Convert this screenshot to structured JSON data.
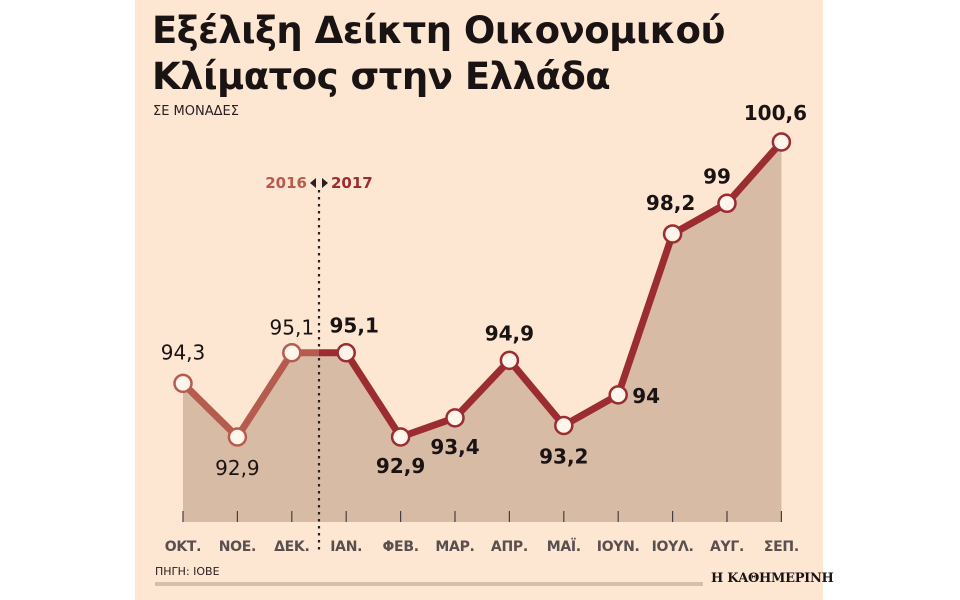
{
  "header": {
    "title": "Εξέλιξη Δείκτη Οικονομικού Κλίματος στην Ελλάδα",
    "subtitle": "ΣΕ ΜΟΝΑΔΕΣ"
  },
  "footer": {
    "source": "ΠΗΓΗ: ΙΟΒΕ",
    "brand": "Η ΚΑΘΗΜΕΡΙΝΗ"
  },
  "divider": {
    "left_year": "2016",
    "right_year": "2017"
  },
  "colors": {
    "background": "#fde6d2",
    "area_fill": "#d7bba5",
    "line_2016": "#b55c4f",
    "line_2017": "#9b2c30",
    "marker_fill": "#fff5ea"
  },
  "chart_data": {
    "type": "area",
    "title": "Εξέλιξη Δείκτη Οικονομικού Κλίματος στην Ελλάδα",
    "subtitle": "ΣΕ ΜΟΝΑΔΕΣ",
    "xlabel": "",
    "ylabel": "ΣΕ ΜΟΝΑΔΕΣ",
    "categories": [
      "ΟΚΤ.",
      "ΝΟΕ.",
      "ΔΕΚ.",
      "ΙΑΝ.",
      "ΦΕΒ.",
      "ΜΑΡ.",
      "ΑΠΡ.",
      "ΜΑΪ.",
      "ΙΟΥΝ.",
      "ΙΟΥΛ.",
      "ΑΥΓ.",
      "ΣΕΠ."
    ],
    "values": [
      94.3,
      92.9,
      95.1,
      95.1,
      92.9,
      93.4,
      94.9,
      93.2,
      94,
      98.2,
      99,
      100.6
    ],
    "value_labels": [
      "94,3",
      "92,9",
      "95,1",
      "95,1",
      "92,9",
      "93,4",
      "94,9",
      "93,2",
      "94",
      "98,2",
      "99",
      "100,6"
    ],
    "series": [
      {
        "name": "2016",
        "categories": [
          "ΟΚΤ.",
          "ΝΟΕ.",
          "ΔΕΚ."
        ],
        "values": [
          94.3,
          92.9,
          95.1
        ]
      },
      {
        "name": "2017",
        "categories": [
          "ΙΑΝ.",
          "ΦΕΒ.",
          "ΜΑΡ.",
          "ΑΠΡ.",
          "ΜΑΪ.",
          "ΙΟΥΝ.",
          "ΙΟΥΛ.",
          "ΑΥΓ.",
          "ΣΕΠ."
        ],
        "values": [
          95.1,
          92.9,
          93.4,
          94.9,
          93.2,
          94,
          98.2,
          99,
          100.6
        ]
      }
    ],
    "annotations": [
      "2016 ◂▸ 2017 divider between ΔΕΚ. and ΙΑΝ."
    ],
    "source": "ΠΗΓΗ: ΙΟΒΕ",
    "grid": false,
    "legend": "none"
  }
}
